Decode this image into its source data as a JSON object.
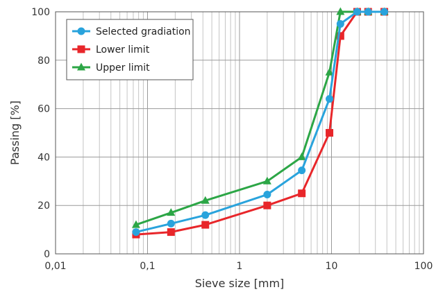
{
  "chart_data": {
    "type": "line",
    "xscale": "log",
    "xlim": [
      0.01,
      100
    ],
    "ylim": [
      0,
      100
    ],
    "xlabel": "Sieve size [mm]",
    "ylabel": "Passing [%]",
    "x_ticks": [
      {
        "value": 0.01,
        "label": "0,01"
      },
      {
        "value": 0.1,
        "label": "0,1"
      },
      {
        "value": 1,
        "label": "1"
      },
      {
        "value": 10,
        "label": "10"
      },
      {
        "value": 100,
        "label": "100"
      }
    ],
    "y_ticks": [
      {
        "value": 0,
        "label": "0"
      },
      {
        "value": 20,
        "label": "20"
      },
      {
        "value": 40,
        "label": "40"
      },
      {
        "value": 60,
        "label": "60"
      },
      {
        "value": 80,
        "label": "80"
      },
      {
        "value": 100,
        "label": "100"
      }
    ],
    "grid": true,
    "legend_position": "top-left",
    "series": [
      {
        "name": "Selected gradiation",
        "color": "#29a3dc",
        "marker": "circle",
        "points": [
          {
            "x": 0.075,
            "y": 9
          },
          {
            "x": 0.18,
            "y": 12.5
          },
          {
            "x": 0.425,
            "y": 16
          },
          {
            "x": 2,
            "y": 24.5
          },
          {
            "x": 4.75,
            "y": 34.5
          },
          {
            "x": 9.5,
            "y": 64
          },
          {
            "x": 12.5,
            "y": 95
          },
          {
            "x": 19,
            "y": 100
          },
          {
            "x": 25,
            "y": 100
          },
          {
            "x": 37.5,
            "y": 100
          }
        ]
      },
      {
        "name": "Lower limit",
        "color": "#e8262a",
        "marker": "square",
        "points": [
          {
            "x": 0.075,
            "y": 8
          },
          {
            "x": 0.18,
            "y": 9
          },
          {
            "x": 0.425,
            "y": 12
          },
          {
            "x": 2,
            "y": 20
          },
          {
            "x": 4.75,
            "y": 25
          },
          {
            "x": 9.5,
            "y": 50
          },
          {
            "x": 12.5,
            "y": 90
          },
          {
            "x": 19,
            "y": 100
          },
          {
            "x": 25,
            "y": 100
          },
          {
            "x": 37.5,
            "y": 100
          }
        ]
      },
      {
        "name": "Upper limit",
        "color": "#2ca646",
        "marker": "triangle",
        "points": [
          {
            "x": 0.075,
            "y": 12
          },
          {
            "x": 0.18,
            "y": 17
          },
          {
            "x": 0.425,
            "y": 22
          },
          {
            "x": 2,
            "y": 30
          },
          {
            "x": 4.75,
            "y": 40
          },
          {
            "x": 9.5,
            "y": 75
          },
          {
            "x": 12.5,
            "y": 100
          },
          {
            "x": 19,
            "y": 100
          },
          {
            "x": 25,
            "y": 100
          },
          {
            "x": 37.5,
            "y": 100
          }
        ]
      }
    ]
  }
}
